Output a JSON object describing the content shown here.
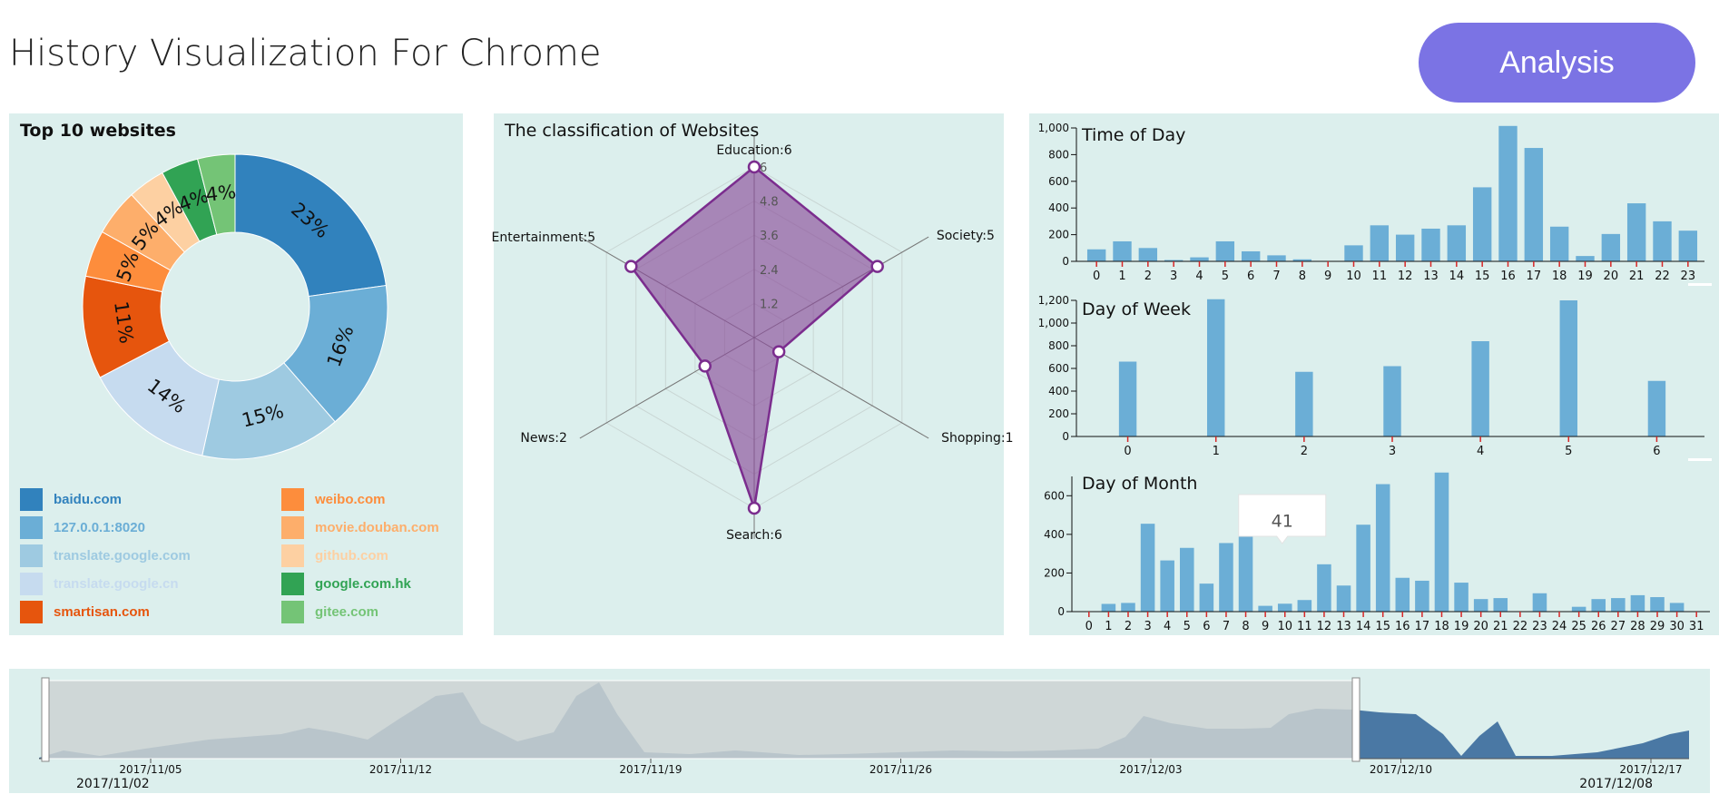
{
  "page": {
    "title": "History Visualization For Chrome",
    "analysis_button": "Analysis"
  },
  "chart_data": [
    {
      "id": "top10",
      "type": "pie",
      "title": "Top 10 websites",
      "labels": [
        "baidu.com",
        "127.0.0.1:8020",
        "translate.google.com",
        "translate.google.cn",
        "smartisan.com",
        "weibo.com",
        "movie.douban.com",
        "github.com",
        "google.com.hk",
        "gitee.com"
      ],
      "values": [
        23,
        16,
        15,
        14,
        11,
        5,
        5,
        4,
        4,
        4
      ],
      "value_labels": [
        "23%",
        "16%",
        "15%",
        "14%",
        "11%",
        "5%",
        "5%",
        "4%",
        "4%",
        "4%"
      ],
      "colors": [
        "#3182bd",
        "#6baed6",
        "#9ecae1",
        "#c6dbef",
        "#e6550d",
        "#fd8d3c",
        "#fdae6b",
        "#fdd0a2",
        "#31a354",
        "#74c476"
      ],
      "donut": true
    },
    {
      "id": "classification",
      "type": "radar",
      "title": "The classification of Websites",
      "axes": [
        "Education",
        "Society",
        "Shopping",
        "Search",
        "News",
        "Entertainment"
      ],
      "axis_labels": [
        "Education:6",
        "Society:5",
        "Shopping:1",
        "Search:6",
        "News:2",
        "Entertainment:5"
      ],
      "values": [
        6,
        5,
        1,
        6,
        2,
        5
      ],
      "max": 6,
      "ticks": [
        1.2,
        2.4,
        3.6,
        4.8,
        6
      ],
      "tick_labels": [
        "1.2",
        "2.4",
        "3.6",
        "4.8",
        "6"
      ],
      "color": "#7b2d8e"
    },
    {
      "id": "time_of_day",
      "type": "bar",
      "title": "Time of Day",
      "categories": [
        "0",
        "1",
        "2",
        "3",
        "4",
        "5",
        "6",
        "7",
        "8",
        "9",
        "10",
        "11",
        "12",
        "13",
        "14",
        "15",
        "16",
        "17",
        "18",
        "19",
        "20",
        "21",
        "22",
        "23"
      ],
      "values": [
        90,
        150,
        100,
        10,
        30,
        150,
        75,
        45,
        15,
        0,
        120,
        270,
        200,
        245,
        270,
        555,
        1015,
        850,
        260,
        40,
        205,
        435,
        300,
        230
      ],
      "ylim": [
        0,
        1000
      ],
      "yticks": [
        0,
        200,
        400,
        600,
        800,
        1000
      ],
      "ytick_labels": [
        "0",
        "200",
        "400",
        "600",
        "800",
        "1,000"
      ],
      "color": "#6baed6"
    },
    {
      "id": "day_of_week",
      "type": "bar",
      "title": "Day of Week",
      "categories": [
        "0",
        "1",
        "2",
        "3",
        "4",
        "5",
        "6"
      ],
      "values": [
        660,
        1210,
        570,
        620,
        840,
        1200,
        490
      ],
      "ylim": [
        0,
        1200
      ],
      "yticks": [
        0,
        200,
        400,
        600,
        800,
        1000,
        1200
      ],
      "ytick_labels": [
        "0",
        "200",
        "400",
        "600",
        "800",
        "1,000",
        "1,200"
      ],
      "color": "#6baed6"
    },
    {
      "id": "day_of_month",
      "type": "bar",
      "title": "Day of Month",
      "categories": [
        "0",
        "1",
        "2",
        "3",
        "4",
        "5",
        "6",
        "7",
        "8",
        "9",
        "10",
        "11",
        "12",
        "13",
        "14",
        "15",
        "16",
        "17",
        "18",
        "19",
        "20",
        "21",
        "22",
        "23",
        "24",
        "25",
        "26",
        "27",
        "28",
        "29",
        "30",
        "31"
      ],
      "values": [
        0,
        40,
        45,
        455,
        265,
        330,
        145,
        355,
        555,
        30,
        41,
        60,
        245,
        135,
        450,
        660,
        175,
        160,
        720,
        150,
        65,
        70,
        0,
        95,
        0,
        25,
        65,
        70,
        85,
        75,
        45,
        0
      ],
      "ylim": [
        0,
        700
      ],
      "yticks": [
        0,
        200,
        400,
        600
      ],
      "ytick_labels": [
        "0",
        "200",
        "400",
        "600"
      ],
      "tooltip": {
        "category": "10",
        "value": "41"
      },
      "color": "#6baed6"
    },
    {
      "id": "timeline",
      "type": "area",
      "x_labels": [
        "2017/11/05",
        "2017/11/12",
        "2017/11/19",
        "2017/11/26",
        "2017/12/03",
        "2017/12/10",
        "2017/12/17"
      ],
      "brush": {
        "start": "2017/11/02",
        "end": "2017/12/08"
      },
      "color": "#4a78a4"
    }
  ]
}
